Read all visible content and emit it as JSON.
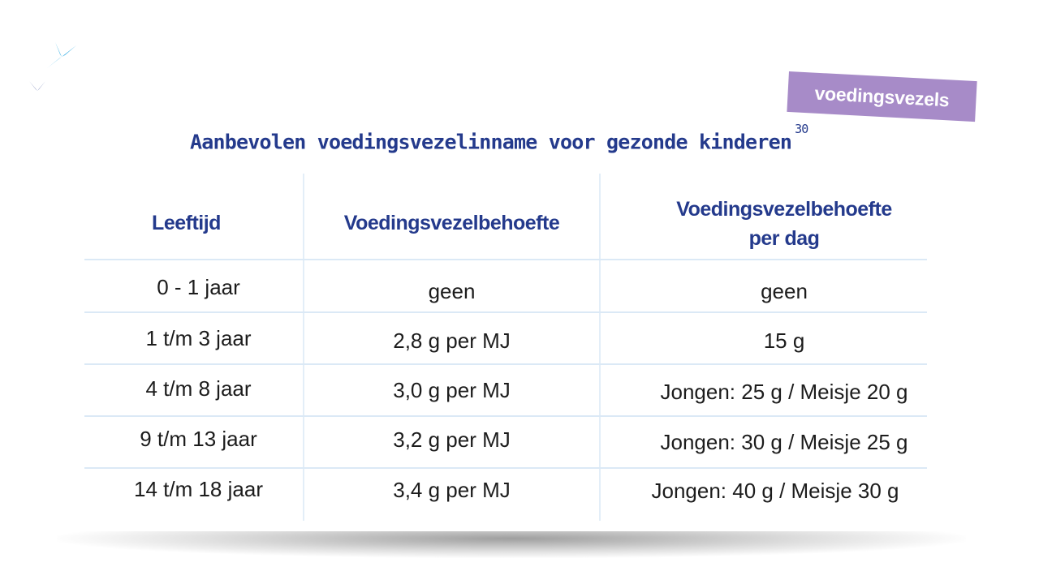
{
  "badge": {
    "label": "voedingsvezels"
  },
  "heading": {
    "title": "Aanbevolen voedingsvezelinname voor gezonde kinderen",
    "footnote": "30"
  },
  "colors": {
    "title": "#243a8c",
    "badge": "#a78bc8",
    "accent_light": "#3bb0e4"
  },
  "table": {
    "headers": {
      "age": "Leeftijd",
      "need": "Voedingsvezelbehoefte",
      "per_day_line1": "Voedingsvezelbehoefte",
      "per_day_line2": "per dag"
    },
    "rows": [
      {
        "age": "0 - 1 jaar",
        "need": "geen",
        "per_day": "geen"
      },
      {
        "age": "1 t/m 3 jaar",
        "need": "2,8 g per MJ",
        "per_day": "15 g"
      },
      {
        "age": "4 t/m 8 jaar",
        "need": "3,0 g per MJ",
        "per_day": "Jongen: 25 g / Meisje 20 g"
      },
      {
        "age": "9 t/m 13 jaar",
        "need": "3,2 g per MJ",
        "per_day": "Jongen: 30 g / Meisje 25 g"
      },
      {
        "age": "14 t/m 18 jaar",
        "need": "3,4 g per MJ",
        "per_day": "Jongen: 40 g / Meisje 30 g"
      }
    ]
  }
}
